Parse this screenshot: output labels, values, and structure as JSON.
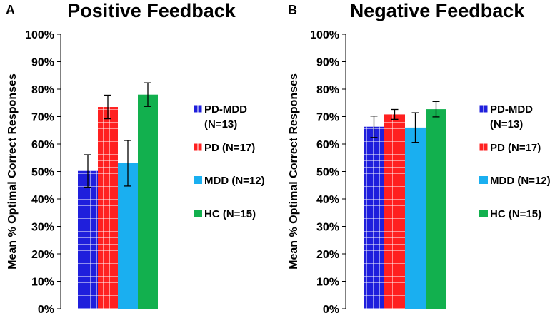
{
  "chart_data": [
    {
      "type": "bar",
      "panel_label": "A",
      "title": "Positive Feedback",
      "xlabel": "",
      "ylabel": "Mean % Optimal Correct Responses",
      "ylim": [
        0,
        100
      ],
      "yticks": [
        "0%",
        "10%",
        "20%",
        "30%",
        "40%",
        "50%",
        "60%",
        "70%",
        "80%",
        "90%",
        "100%"
      ],
      "grid": false,
      "legend_position": "right",
      "series": [
        {
          "name": "PD-MDD (N=13)",
          "legend_lines": [
            "PD-MDD",
            "(N=13)"
          ],
          "value": 50.2,
          "error": 5.9,
          "color": "#1f1fdc",
          "pattern": "grid"
        },
        {
          "name": "PD (N=17)",
          "legend_lines": [
            "PD (N=17)"
          ],
          "value": 73.5,
          "error": 4.3,
          "color": "#ff2020",
          "pattern": "grid"
        },
        {
          "name": "MDD (N=12)",
          "legend_lines": [
            "MDD (N=12)"
          ],
          "value": 53.0,
          "error": 8.3,
          "color": "#1aaff0",
          "pattern": "solid"
        },
        {
          "name": "HC (N=15)",
          "legend_lines": [
            "HC (N=15)"
          ],
          "value": 78.0,
          "error": 4.3,
          "color": "#12b04e",
          "pattern": "solid"
        }
      ]
    },
    {
      "type": "bar",
      "panel_label": "B",
      "title": "Negative Feedback",
      "xlabel": "",
      "ylabel": "Mean % Optimal Correct Responses",
      "ylim": [
        0,
        100
      ],
      "yticks": [
        "0%",
        "10%",
        "20%",
        "30%",
        "40%",
        "50%",
        "60%",
        "70%",
        "80%",
        "90%",
        "100%"
      ],
      "grid": false,
      "legend_position": "right",
      "series": [
        {
          "name": "PD-MDD (N=13)",
          "legend_lines": [
            "PD-MDD",
            "(N=13)"
          ],
          "value": 66.3,
          "error": 3.9,
          "color": "#1f1fdc",
          "pattern": "grid"
        },
        {
          "name": "PD (N=17)",
          "legend_lines": [
            "PD (N=17)"
          ],
          "value": 70.8,
          "error": 1.8,
          "color": "#ff2020",
          "pattern": "grid"
        },
        {
          "name": "MDD (N=12)",
          "legend_lines": [
            "MDD (N=12)"
          ],
          "value": 66.0,
          "error": 5.4,
          "color": "#1aaff0",
          "pattern": "solid"
        },
        {
          "name": "HC (N=15)",
          "legend_lines": [
            "HC (N=15)"
          ],
          "value": 72.7,
          "error": 2.8,
          "color": "#12b04e",
          "pattern": "solid"
        }
      ]
    }
  ]
}
